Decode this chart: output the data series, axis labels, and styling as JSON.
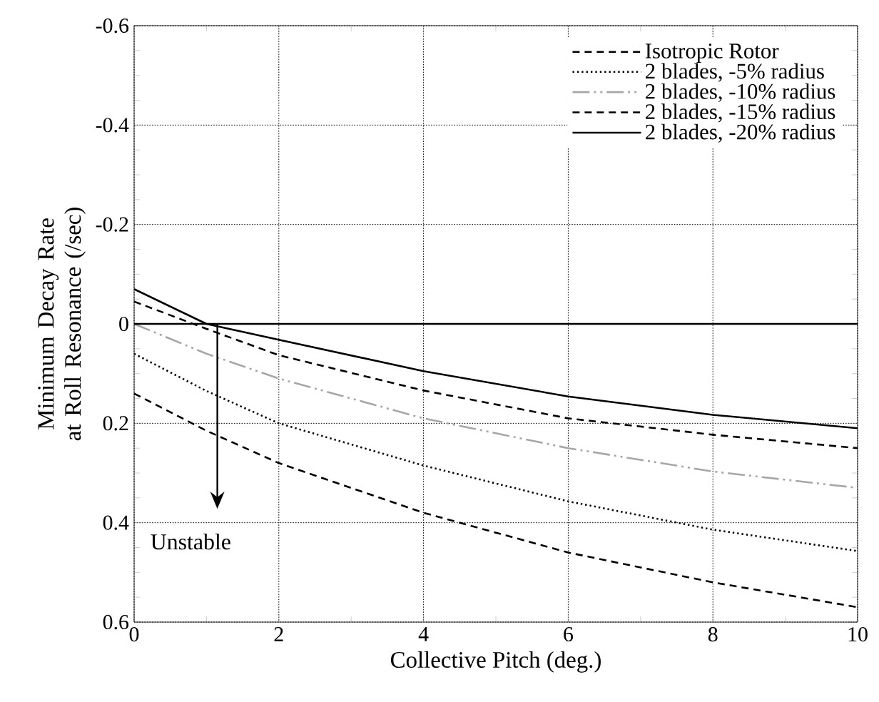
{
  "chart_data": {
    "type": "line",
    "xlabel": "Collective Pitch (deg.)",
    "ylabel": "Minimum Decay Rate at Roll Resonance (/sec)",
    "x": [
      0,
      1,
      2,
      4,
      6,
      8,
      10
    ],
    "series": [
      {
        "name": "Isotropic Rotor",
        "color": "#000000",
        "line_style": "dashed",
        "values": [
          0.14,
          0.215,
          0.28,
          0.38,
          0.46,
          0.52,
          0.57
        ]
      },
      {
        "name": "2 blades, -5% radius",
        "color": "#000000",
        "line_style": "dotted",
        "values": [
          0.06,
          0.135,
          0.2,
          0.285,
          0.357,
          0.414,
          0.457
        ]
      },
      {
        "name": "2 blades, -10% radius",
        "color": "#a6a6a6",
        "line_style": "dashdotdotted",
        "values": [
          0.0,
          0.06,
          0.11,
          0.19,
          0.25,
          0.297,
          0.33
        ]
      },
      {
        "name": "2 blades, -15% radius",
        "color": "#000000",
        "line_style": "dashed",
        "values": [
          -0.045,
          0.01,
          0.063,
          0.134,
          0.19,
          0.223,
          0.25
        ]
      },
      {
        "name": "2 blades, -20% radius",
        "color": "#000000",
        "line_style": "solid",
        "values": [
          -0.07,
          0.0,
          0.032,
          0.095,
          0.146,
          0.183,
          0.21
        ]
      }
    ],
    "xlim": [
      0,
      10
    ],
    "xticks": [
      0,
      2,
      4,
      6,
      8,
      10
    ],
    "ylim": [
      0.6,
      -0.6
    ],
    "yticks": [
      -0.6,
      -0.4,
      -0.2,
      0,
      0.2,
      0.4,
      0.6
    ],
    "grid": true,
    "legend": "top right",
    "ref_lines": [
      {
        "axis": "y",
        "value": 0,
        "color": "#000000",
        "line_style": "solid"
      }
    ],
    "annotations": [
      "Unstable"
    ]
  }
}
